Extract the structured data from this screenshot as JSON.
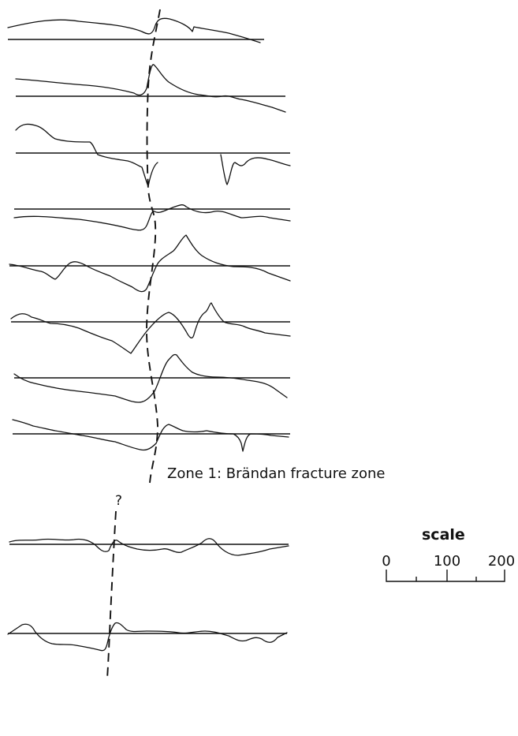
{
  "zone_label": "Zone 1: Brändan fracture zone",
  "uncertain_marker": "?",
  "scale": {
    "title": "scale",
    "tick_labels": [
      "0",
      "100",
      "200"
    ]
  }
}
